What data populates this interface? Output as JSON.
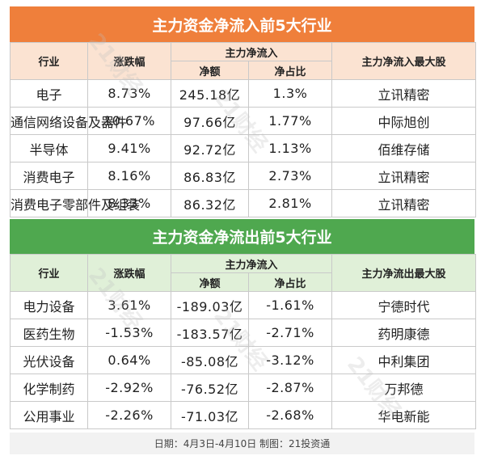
{
  "inflow": {
    "title": "主力资金净流入前5大行业",
    "headers": {
      "industry": "行业",
      "change": "涨跌幅",
      "main_flow": "主力净流入",
      "net_amount": "净额",
      "net_ratio": "净占比",
      "top_stock": "主力净流入最大股"
    },
    "rows": [
      {
        "industry": "电子",
        "change": "8.73%",
        "net_amount": "245.18亿",
        "net_ratio": "1.3%",
        "top_stock": "立讯精密"
      },
      {
        "industry": "通信网络设备及器件",
        "change": "10.67%",
        "net_amount": "97.66亿",
        "net_ratio": "1.77%",
        "top_stock": "中际旭创"
      },
      {
        "industry": "半导体",
        "change": "9.41%",
        "net_amount": "92.72亿",
        "net_ratio": "1.13%",
        "top_stock": "佰维存储"
      },
      {
        "industry": "消费电子",
        "change": "8.16%",
        "net_amount": "86.83亿",
        "net_ratio": "2.73%",
        "top_stock": "立讯精密"
      },
      {
        "industry": "消费电子零部件及组装",
        "change": "8.33%",
        "net_amount": "86.32亿",
        "net_ratio": "2.81%",
        "top_stock": "立讯精密"
      }
    ]
  },
  "outflow": {
    "title": "主力资金净流出前5大行业",
    "headers": {
      "industry": "行业",
      "change": "涨跌幅",
      "main_flow": "主力净流入",
      "net_amount": "净额",
      "net_ratio": "净占比",
      "top_stock": "主力净流出最大股"
    },
    "rows": [
      {
        "industry": "电力设备",
        "change": "3.61%",
        "net_amount": "-189.03亿",
        "net_ratio": "-1.61%",
        "top_stock": "宁德时代"
      },
      {
        "industry": "医药生物",
        "change": "-1.53%",
        "net_amount": "-183.57亿",
        "net_ratio": "-2.71%",
        "top_stock": "药明康德"
      },
      {
        "industry": "光伏设备",
        "change": "0.64%",
        "net_amount": "-85.08亿",
        "net_ratio": "-3.12%",
        "top_stock": "中利集团"
      },
      {
        "industry": "化学制药",
        "change": "-2.92%",
        "net_amount": "-76.52亿",
        "net_ratio": "-2.87%",
        "top_stock": "万邦德"
      },
      {
        "industry": "公用事业",
        "change": "-2.26%",
        "net_amount": "-71.03亿",
        "net_ratio": "-2.68%",
        "top_stock": "华电新能"
      }
    ]
  },
  "footer": "日期：4月3日-4月10日 制图：21投资通",
  "watermark": "21财经",
  "colors": {
    "inflow_banner": "#ef7f3b",
    "inflow_header": "#fbe3d2",
    "outflow_banner": "#4fa84f",
    "outflow_header": "#e0f0d8"
  }
}
